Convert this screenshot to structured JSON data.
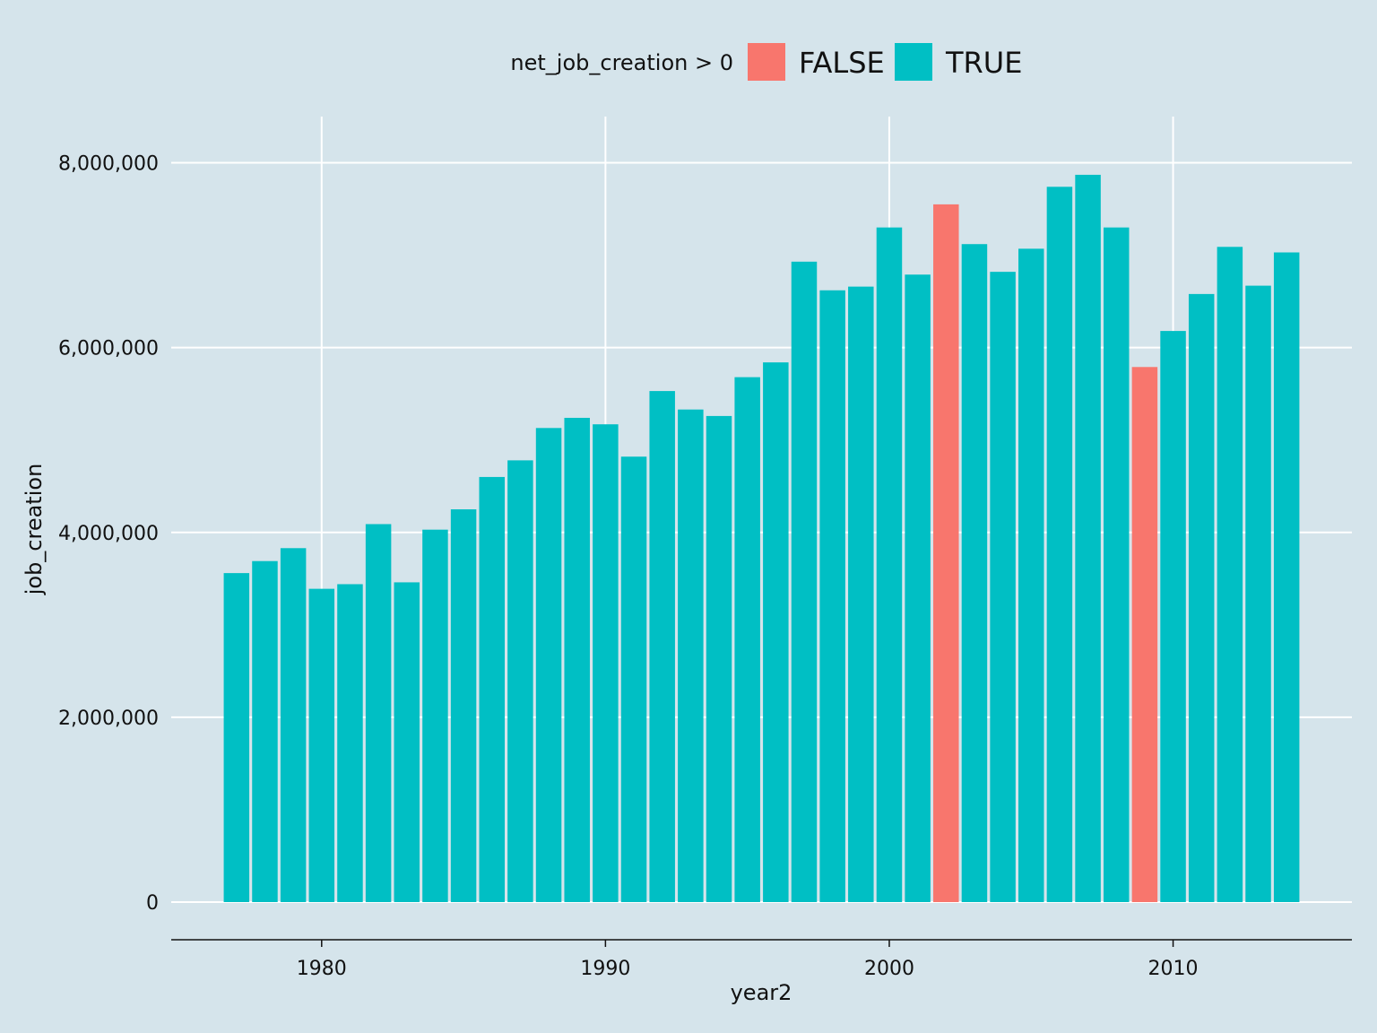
{
  "chart_data": {
    "type": "bar",
    "title": "",
    "xlabel": "year2",
    "ylabel": "job_creation",
    "ylim": [
      0,
      8500000
    ],
    "xlim": [
      1974.7,
      2016.3
    ],
    "x_ticks": [
      1980,
      1990,
      2000,
      2010
    ],
    "x_tick_labels": [
      "1980",
      "1990",
      "2000",
      "2010"
    ],
    "y_ticks": [
      0,
      2000000,
      4000000,
      6000000,
      8000000
    ],
    "y_tick_labels": [
      "0",
      "2,000,000",
      "4,000,000",
      "6,000,000",
      "8,000,000"
    ],
    "grid": true,
    "legend": {
      "title": "net_job_creation > 0",
      "position": "top",
      "entries": [
        {
          "label": "FALSE",
          "color": "#f8766d"
        },
        {
          "label": "TRUE",
          "color": "#00bfc4"
        }
      ]
    },
    "colors": {
      "FALSE": "#f8766d",
      "TRUE": "#00bfc4"
    },
    "x": [
      1977,
      1978,
      1979,
      1980,
      1981,
      1982,
      1983,
      1984,
      1985,
      1986,
      1987,
      1988,
      1989,
      1990,
      1991,
      1992,
      1993,
      1994,
      1995,
      1996,
      1997,
      1998,
      1999,
      2000,
      2001,
      2002,
      2003,
      2004,
      2005,
      2006,
      2007,
      2008,
      2009,
      2010,
      2011,
      2012,
      2013,
      2014
    ],
    "values": [
      3560000,
      3690000,
      3830000,
      3390000,
      3440000,
      4090000,
      3460000,
      4030000,
      4250000,
      4600000,
      4780000,
      5130000,
      5240000,
      5170000,
      4820000,
      5530000,
      5330000,
      5260000,
      5680000,
      5840000,
      6930000,
      6620000,
      6660000,
      7300000,
      6790000,
      7550000,
      7120000,
      6820000,
      7070000,
      7740000,
      7870000,
      7300000,
      5790000,
      6180000,
      6580000,
      7090000,
      6670000,
      7030000
    ],
    "net_job_creation_positive": [
      true,
      true,
      true,
      true,
      true,
      true,
      true,
      true,
      true,
      true,
      true,
      true,
      true,
      true,
      true,
      true,
      true,
      true,
      true,
      true,
      true,
      true,
      true,
      true,
      true,
      false,
      true,
      true,
      true,
      true,
      true,
      true,
      false,
      true,
      true,
      true,
      true,
      true
    ]
  }
}
